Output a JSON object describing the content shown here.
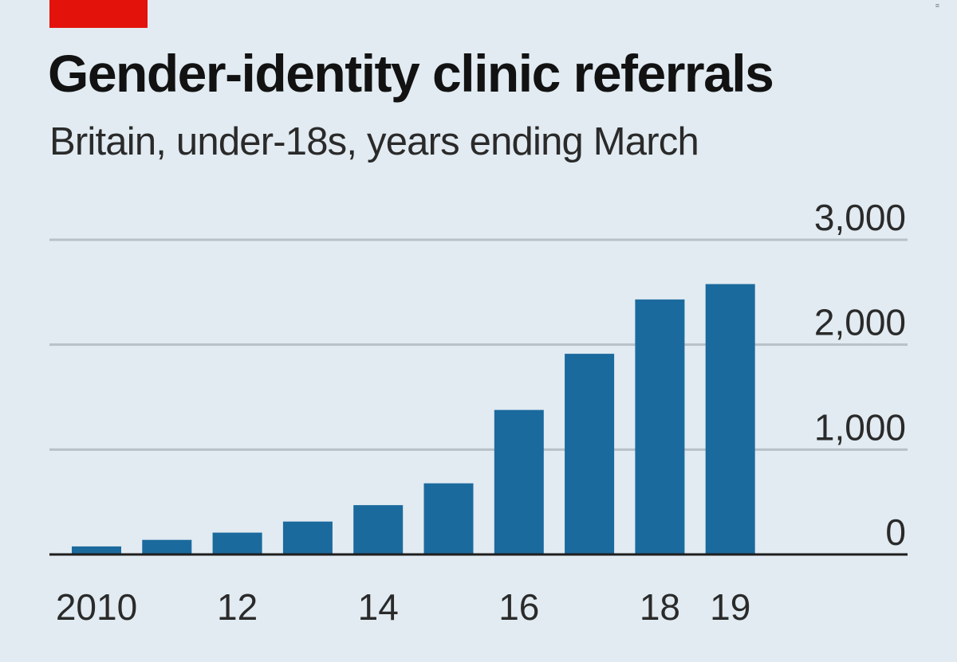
{
  "colors": {
    "background": "#e1ebf1",
    "bar": "#1b6a9e",
    "tag": "#e3120b",
    "gridline": "#b7c1c7",
    "baseline": "#1e1e1e"
  },
  "corner_mark": "≡",
  "chart_data": {
    "type": "bar",
    "title": "Gender-identity clinic referrals",
    "subtitle": "Britain, under-18s, years ending March",
    "xlabel": "",
    "ylabel": "",
    "categories": [
      "2010",
      "11",
      "12",
      "13",
      "14",
      "15",
      "16",
      "17",
      "18",
      "19"
    ],
    "x_tick_labels": [
      "2010",
      "",
      "12",
      "",
      "14",
      "",
      "16",
      "",
      "18",
      "19"
    ],
    "values": [
      77,
      139,
      208,
      314,
      470,
      678,
      1378,
      1913,
      2431,
      2578
    ],
    "ylim": [
      0,
      3000
    ],
    "y_ticks": [
      0,
      1000,
      2000,
      3000
    ],
    "y_tick_labels": [
      "0",
      "1,000",
      "2,000",
      "3,000"
    ],
    "y_axis_side": "right",
    "grid": true,
    "legend": "none"
  }
}
